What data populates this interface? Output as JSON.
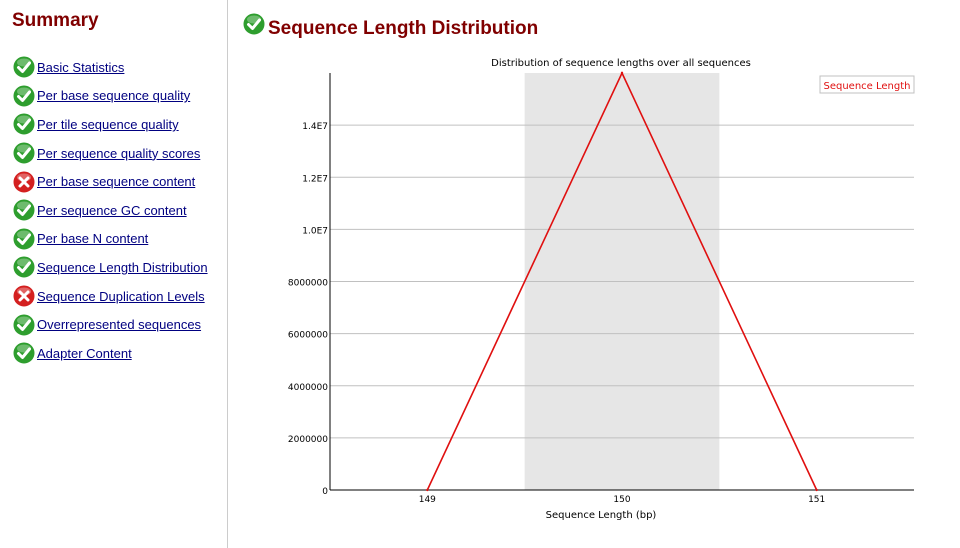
{
  "sidebar": {
    "title": "Summary",
    "items": [
      {
        "label": "Basic Statistics",
        "status": "pass"
      },
      {
        "label": "Per base sequence quality",
        "status": "pass"
      },
      {
        "label": "Per tile sequence quality",
        "status": "pass"
      },
      {
        "label": "Per sequence quality scores",
        "status": "pass"
      },
      {
        "label": "Per base sequence content",
        "status": "fail"
      },
      {
        "label": "Per sequence GC content",
        "status": "pass"
      },
      {
        "label": "Per base N content",
        "status": "pass"
      },
      {
        "label": "Sequence Length Distribution",
        "status": "pass"
      },
      {
        "label": "Sequence Duplication Levels",
        "status": "fail"
      },
      {
        "label": "Overrepresented sequences",
        "status": "pass"
      },
      {
        "label": "Adapter Content",
        "status": "pass"
      }
    ]
  },
  "main": {
    "heading": "Sequence Length Distribution",
    "status": "pass"
  },
  "colors": {
    "heading": "#800000",
    "link": "#000080",
    "pass": "#2e9e2e",
    "fail": "#d42020",
    "series": "#e01010",
    "band": "#e6e6e6",
    "grid": "#c0c0c0"
  },
  "chart_data": {
    "type": "line",
    "title": "Distribution of sequence lengths over all sequences",
    "xlabel": "Sequence Length (bp)",
    "ylabel": "",
    "categories": [
      "149",
      "150",
      "151"
    ],
    "series": [
      {
        "name": "Sequence Length",
        "values": [
          0,
          16000000,
          0
        ]
      }
    ],
    "highlight_band_category": "150",
    "yticks": [
      0,
      2000000,
      4000000,
      6000000,
      8000000,
      10000000,
      12000000,
      14000000
    ],
    "ytick_labels": [
      "0",
      "2000000",
      "4000000",
      "6000000",
      "8000000",
      "1.0E7",
      "1.2E7",
      "1.4E7"
    ],
    "ylim": [
      0,
      16000000
    ],
    "grid": true,
    "legend_position": "top-right"
  }
}
